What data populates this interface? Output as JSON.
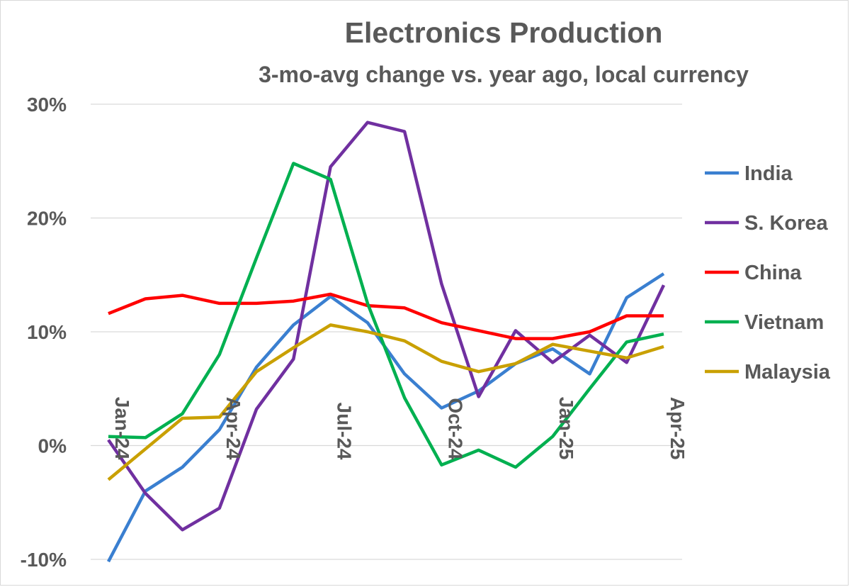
{
  "chart_data": {
    "type": "line",
    "title": "Electronics Production",
    "subtitle": "3-mo-avg change vs. year ago, local currency",
    "xlabel": "",
    "ylabel": "",
    "ylim": [
      -10,
      30
    ],
    "yticks": [
      "30%",
      "20%",
      "10%",
      "0%",
      "-10%"
    ],
    "ytick_values": [
      30,
      20,
      10,
      0,
      -10
    ],
    "x": [
      "Jan-24",
      "Feb-24",
      "Mar-24",
      "Apr-24",
      "May-24",
      "Jun-24",
      "Jul-24",
      "Aug-24",
      "Sep-24",
      "Oct-24",
      "Nov-24",
      "Dec-24",
      "Jan-25",
      "Feb-25",
      "Mar-25",
      "Apr-25"
    ],
    "xtick_labels": [
      "Jan-24",
      "Apr-24",
      "Jul-24",
      "Oct-24",
      "Jan-25",
      "Apr-25"
    ],
    "xtick_indices": [
      0,
      3,
      6,
      9,
      12,
      15
    ],
    "grid": true,
    "legend_position": "right",
    "series": [
      {
        "name": "India",
        "color": "#3a7fd0",
        "values": [
          -10.2,
          -4.0,
          -1.9,
          1.4,
          6.9,
          10.6,
          13.1,
          10.8,
          6.3,
          3.3,
          4.8,
          7.2,
          8.5,
          6.3,
          13.0,
          15.1
        ]
      },
      {
        "name": "S. Korea",
        "color": "#7030a0",
        "values": [
          0.5,
          -4.2,
          -7.4,
          -5.5,
          3.2,
          7.6,
          24.5,
          28.4,
          27.6,
          14.2,
          4.3,
          10.1,
          7.3,
          9.7,
          7.3,
          14.1
        ]
      },
      {
        "name": "China",
        "color": "#ff0000",
        "values": [
          11.6,
          12.9,
          13.2,
          12.5,
          12.5,
          12.7,
          13.3,
          12.3,
          12.1,
          10.8,
          10.1,
          9.4,
          9.4,
          10.0,
          11.4,
          11.4
        ]
      },
      {
        "name": "Vietnam",
        "color": "#00b050",
        "values": [
          0.8,
          0.7,
          2.8,
          8.0,
          16.5,
          24.8,
          23.4,
          12.5,
          4.2,
          -1.7,
          -0.4,
          -1.9,
          0.8,
          5.0,
          9.1,
          9.8
        ]
      },
      {
        "name": "Malaysia",
        "color": "#c9a000",
        "values": [
          -3.0,
          -0.3,
          2.4,
          2.5,
          6.5,
          8.6,
          10.6,
          10.0,
          9.2,
          7.4,
          6.5,
          7.2,
          8.9,
          8.3,
          7.7,
          8.7
        ]
      }
    ]
  }
}
